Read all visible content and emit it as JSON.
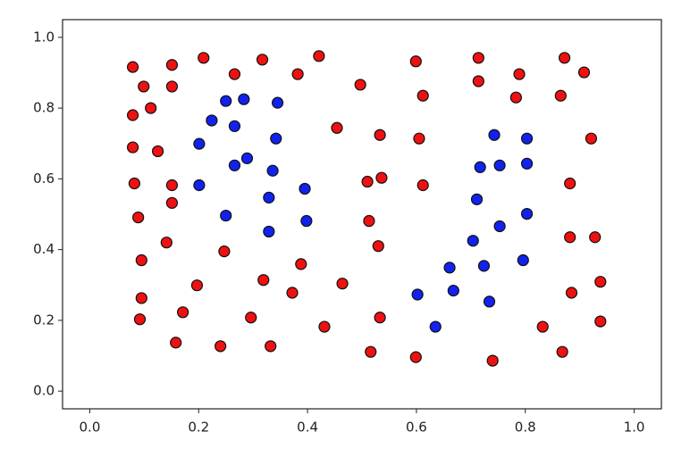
{
  "chart_data": {
    "type": "scatter",
    "xlim": [
      -0.05,
      1.05
    ],
    "ylim": [
      -0.05,
      1.05
    ],
    "xticks": [
      {
        "value": 0,
        "label": "0.0"
      },
      0.2,
      0.4,
      0.6,
      0.8,
      {
        "value": 1,
        "label": "1.0"
      }
    ],
    "yticks": [
      {
        "value": 0,
        "label": "0.0"
      },
      0.2,
      0.4,
      0.6,
      0.8,
      {
        "value": 1,
        "label": "1.0"
      }
    ],
    "grid": false,
    "series": [
      {
        "color": "#ee1111",
        "x": [
          0.079,
          0.099,
          0.151,
          0.151,
          0.209,
          0.266,
          0.317,
          0.382,
          0.421,
          0.112,
          0.079,
          0.125,
          0.079,
          0.082,
          0.151,
          0.151,
          0.089,
          0.141,
          0.095,
          0.247,
          0.095,
          0.197,
          0.092,
          0.171,
          0.158,
          0.24,
          0.296,
          0.319,
          0.388,
          0.372,
          0.332,
          0.431,
          0.464,
          0.454,
          0.497,
          0.533,
          0.51,
          0.536,
          0.513,
          0.53,
          0.533,
          0.516,
          0.599,
          0.612,
          0.605,
          0.612,
          0.599,
          0.714,
          0.714,
          0.789,
          0.783,
          0.872,
          0.865,
          0.908,
          0.921,
          0.882,
          0.882,
          0.928,
          0.885,
          0.938,
          0.938,
          0.832,
          0.868,
          0.74
        ],
        "values": [
          0.916,
          0.861,
          0.922,
          0.861,
          0.942,
          0.896,
          0.937,
          0.896,
          0.947,
          0.8,
          0.78,
          0.678,
          0.689,
          0.587,
          0.582,
          0.532,
          0.491,
          0.42,
          0.37,
          0.395,
          0.263,
          0.299,
          0.203,
          0.223,
          0.137,
          0.127,
          0.208,
          0.314,
          0.359,
          0.278,
          0.127,
          0.182,
          0.304,
          0.744,
          0.866,
          0.724,
          0.592,
          0.603,
          0.481,
          0.41,
          0.208,
          0.111,
          0.932,
          0.835,
          0.714,
          0.582,
          0.096,
          0.942,
          0.876,
          0.896,
          0.83,
          0.942,
          0.835,
          0.901,
          0.714,
          0.587,
          0.435,
          0.435,
          0.278,
          0.309,
          0.197,
          0.182,
          0.111,
          0.086
        ]
      },
      {
        "color": "#1122ee",
        "x": [
          0.25,
          0.283,
          0.224,
          0.266,
          0.201,
          0.345,
          0.342,
          0.289,
          0.266,
          0.336,
          0.201,
          0.329,
          0.395,
          0.25,
          0.398,
          0.329,
          0.743,
          0.803,
          0.717,
          0.753,
          0.803,
          0.711,
          0.803,
          0.753,
          0.704,
          0.796,
          0.661,
          0.724,
          0.602,
          0.668,
          0.734,
          0.635
        ],
        "values": [
          0.82,
          0.825,
          0.765,
          0.749,
          0.699,
          0.815,
          0.714,
          0.658,
          0.638,
          0.623,
          0.582,
          0.547,
          0.572,
          0.496,
          0.481,
          0.451,
          0.724,
          0.714,
          0.633,
          0.638,
          0.643,
          0.542,
          0.501,
          0.466,
          0.425,
          0.37,
          0.349,
          0.354,
          0.273,
          0.284,
          0.253,
          0.182
        ]
      }
    ]
  }
}
